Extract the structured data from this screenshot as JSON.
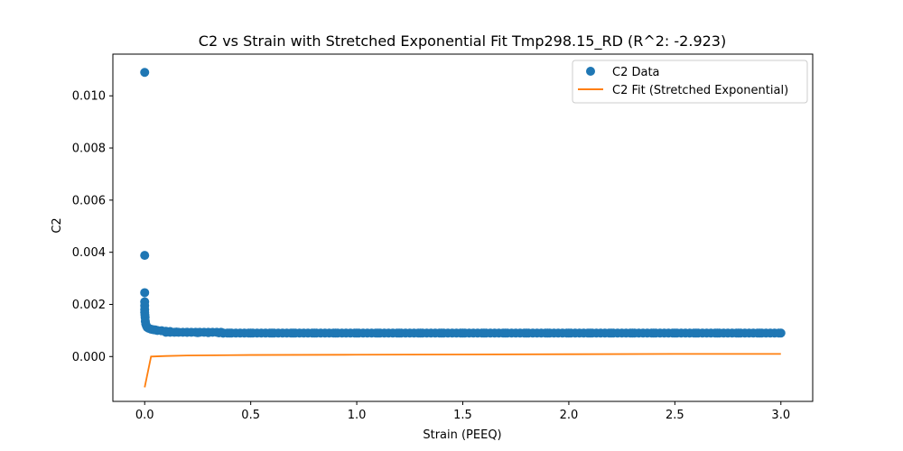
{
  "chart_data": {
    "type": "scatter",
    "title": "C2 vs Strain with Stretched Exponential Fit Tmp298.15_RD (R^2: -2.923)",
    "xlabel": "Strain (PEEQ)",
    "ylabel": "C2",
    "xlim": [
      -0.15,
      3.15
    ],
    "ylim": [
      -0.00172,
      0.0116
    ],
    "xticks": [
      0.0,
      0.5,
      1.0,
      1.5,
      2.0,
      2.5,
      3.0
    ],
    "xtick_labels": [
      "0.0",
      "0.5",
      "1.0",
      "1.5",
      "2.0",
      "2.5",
      "3.0"
    ],
    "yticks": [
      0.0,
      0.002,
      0.004,
      0.006,
      0.008,
      0.01
    ],
    "ytick_labels": [
      "0.000",
      "0.002",
      "0.004",
      "0.006",
      "0.008",
      "0.010"
    ],
    "grid": false,
    "legend_position": "upper right",
    "series": [
      {
        "name": "C2 Data",
        "kind": "scatter",
        "color": "#1f77b4",
        "x": [
          0.0,
          0.0,
          0.0,
          0.0,
          0.0,
          0.0,
          0.0,
          0.001,
          0.002,
          0.003,
          0.005,
          0.008,
          0.012,
          0.02,
          0.03,
          0.04,
          0.05,
          0.06,
          0.08,
          0.1,
          0.12,
          0.15,
          0.2,
          0.25,
          0.3,
          0.35,
          0.37,
          0.4,
          0.5,
          0.6,
          0.7,
          0.8,
          0.9,
          1.0,
          1.1,
          1.2,
          1.3,
          1.4,
          1.5,
          1.6,
          1.7,
          1.8,
          1.9,
          2.0,
          2.1,
          2.2,
          2.3,
          2.4,
          2.5,
          2.6,
          2.7,
          2.8,
          2.9,
          3.0
        ],
        "y": [
          0.0109,
          0.00388,
          0.00245,
          0.0021,
          0.00195,
          0.0018,
          0.0017,
          0.0016,
          0.0015,
          0.00135,
          0.00125,
          0.00118,
          0.00112,
          0.00108,
          0.00105,
          0.00103,
          0.00102,
          0.001,
          0.00099,
          0.00097,
          0.00096,
          0.00094,
          0.00093,
          0.00092,
          0.00092,
          0.00091,
          0.0009,
          0.0009,
          0.0009,
          0.0009,
          0.0009,
          0.0009,
          0.0009,
          0.0009,
          0.0009,
          0.0009,
          0.0009,
          0.0009,
          0.0009,
          0.0009,
          0.0009,
          0.0009,
          0.0009,
          0.0009,
          0.0009,
          0.0009,
          0.0009,
          0.0009,
          0.0009,
          0.0009,
          0.0009,
          0.0009,
          0.0009,
          0.0009
        ]
      },
      {
        "name": "C2 Fit (Stretched Exponential)",
        "kind": "line",
        "color": "#ff7f0e",
        "x": [
          0.0,
          0.03,
          0.1,
          0.2,
          0.5,
          1.0,
          1.5,
          2.0,
          2.5,
          3.0
        ],
        "y": [
          -0.00118,
          0.0,
          2e-05,
          4e-05,
          6e-05,
          7e-05,
          8e-05,
          9e-05,
          0.0001,
          0.0001
        ]
      }
    ]
  }
}
